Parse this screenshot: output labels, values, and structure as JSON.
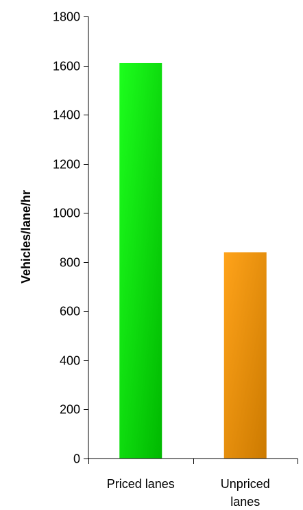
{
  "chart_data": {
    "type": "bar",
    "categories": [
      "Priced lanes",
      "Unpriced lanes"
    ],
    "category_label_lines": [
      [
        "Priced lanes"
      ],
      [
        "Unpriced",
        "lanes"
      ]
    ],
    "values": [
      1610,
      840
    ],
    "ylabel": "Vehicles/lane/hr",
    "xlabel": "",
    "title": "",
    "ylim": [
      0,
      1800
    ],
    "yticks": [
      0,
      200,
      400,
      600,
      800,
      1000,
      1200,
      1400,
      1600,
      1800
    ],
    "grid": false,
    "legend": "none",
    "bar_colors": [
      {
        "light": "#1dff1d",
        "dark": "#00b800"
      },
      {
        "light": "#ffa31a",
        "dark": "#cc7a00"
      }
    ]
  }
}
